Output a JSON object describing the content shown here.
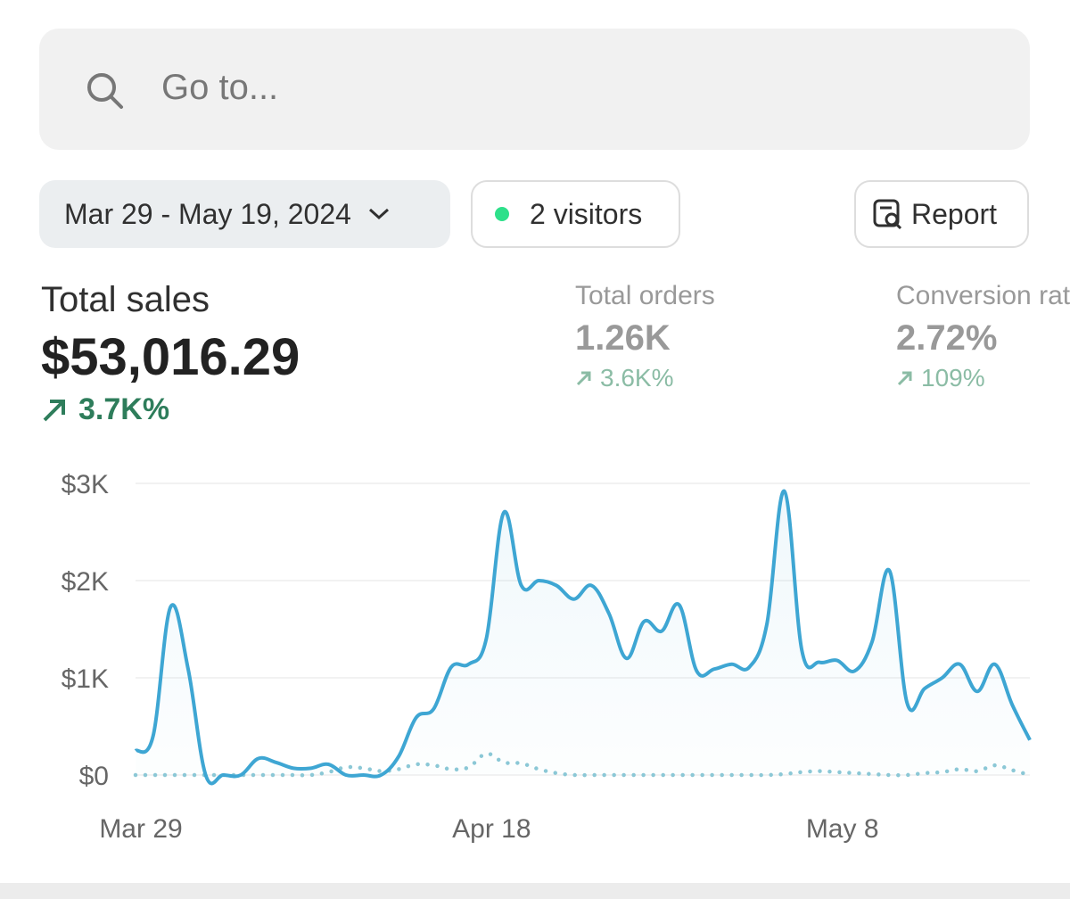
{
  "search": {
    "placeholder": "Go to..."
  },
  "filters": {
    "date_range": "Mar 29 - May 19, 2024",
    "visitors": "2 visitors",
    "report": "Report"
  },
  "metrics": [
    {
      "label": "Total sales",
      "value": "$53,016.29",
      "change": "3.7K%"
    },
    {
      "label": "Total orders",
      "value": "1.26K",
      "change": "3.6K%"
    },
    {
      "label": "Conversion rate",
      "value": "2.72%",
      "change": "109%"
    }
  ],
  "chart_data": {
    "type": "line",
    "categories": [
      "Mar 29",
      null,
      null,
      null,
      null,
      null,
      null,
      null,
      null,
      null,
      null,
      null,
      null,
      null,
      null,
      null,
      null,
      null,
      null,
      null,
      "Apr 18",
      null,
      null,
      null,
      null,
      null,
      null,
      null,
      null,
      null,
      null,
      null,
      null,
      null,
      null,
      null,
      null,
      null,
      null,
      null,
      "May 8",
      null,
      null,
      null,
      null,
      null,
      null,
      null,
      null,
      null,
      null,
      null
    ],
    "series": [
      {
        "color": "#3ea6d3",
        "values": [
          250,
          400,
          1730,
          1090,
          0,
          0,
          0,
          170,
          130,
          70,
          70,
          110,
          0,
          0,
          0,
          190,
          590,
          680,
          1110,
          1140,
          1400,
          2700,
          1950,
          2000,
          1950,
          1810,
          1950,
          1660,
          1200,
          1580,
          1480,
          1750,
          1070,
          1090,
          1140,
          1110,
          1550,
          2920,
          1280,
          1160,
          1180,
          1070,
          1370,
          2100,
          740,
          890,
          1000,
          1140,
          860,
          1140,
          720,
          360
        ]
      },
      {
        "color": "#8cc8d6",
        "values": [
          0,
          0,
          0,
          0,
          0,
          0,
          0,
          0,
          0,
          0,
          0,
          30,
          80,
          70,
          40,
          60,
          110,
          100,
          60,
          80,
          220,
          130,
          120,
          60,
          20,
          0,
          0,
          0,
          0,
          0,
          0,
          0,
          0,
          0,
          0,
          0,
          0,
          10,
          30,
          40,
          30,
          20,
          10,
          0,
          0,
          20,
          30,
          60,
          40,
          100,
          50,
          0
        ]
      }
    ],
    "ylim": [
      0,
      3000
    ],
    "yticks": [
      {
        "value": 0,
        "label": "$0"
      },
      {
        "value": 1000,
        "label": "$1K"
      },
      {
        "value": 2000,
        "label": "$2K"
      },
      {
        "value": 3000,
        "label": "$3K"
      }
    ],
    "grid": true
  }
}
